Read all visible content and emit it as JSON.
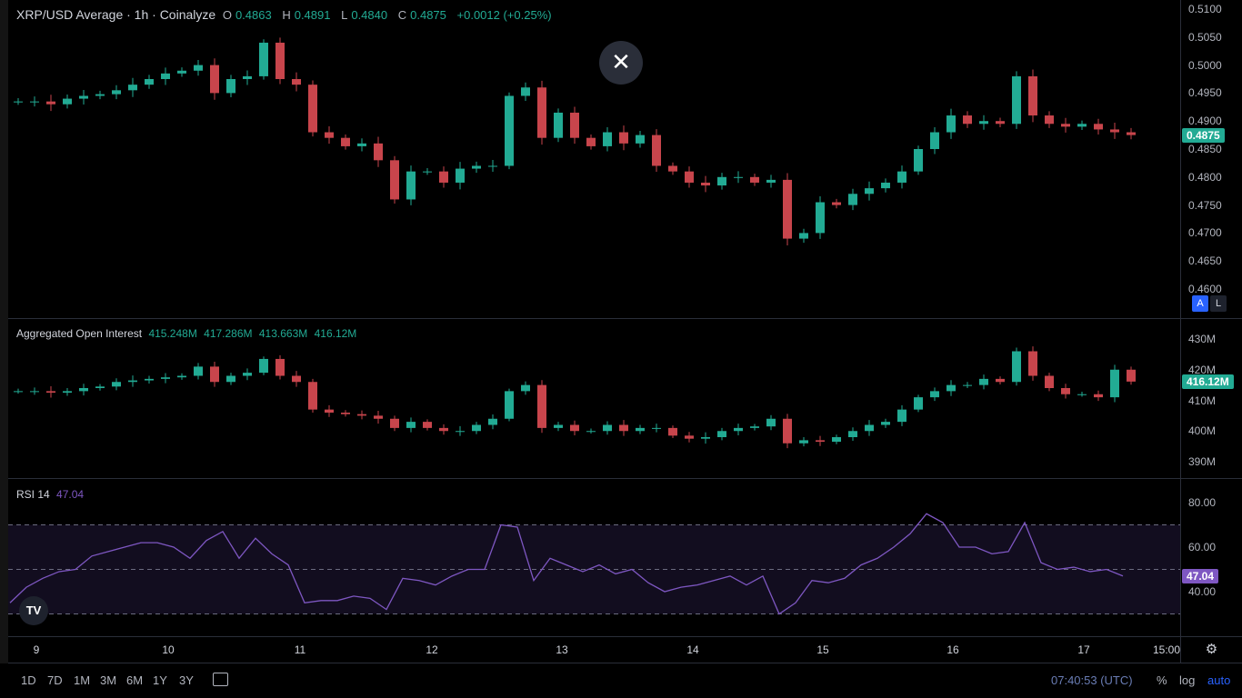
{
  "main": {
    "title": "XRP/USD Average · 1h · Coinalyze",
    "o_label": "O",
    "o": "0.4863",
    "h_label": "H",
    "h": "0.4891",
    "l_label": "L",
    "l": "0.4840",
    "c_label": "C",
    "c": "0.4875",
    "change": "+0.0012 (+0.25%)",
    "close_button": "✕",
    "auto_label": "A",
    "log_label": "L"
  },
  "oi": {
    "title": "Aggregated Open Interest",
    "v1": "415.248M",
    "v2": "417.286M",
    "v3": "413.663M",
    "v4": "416.12M"
  },
  "rsi": {
    "title": "RSI 14",
    "value": "47.04"
  },
  "colors": {
    "up": "#22ab94",
    "down": "#c8454c",
    "rsi": "#7e57c2",
    "background": "#000000"
  },
  "time_axis": [
    "9",
    "10",
    "11",
    "12",
    "13",
    "14",
    "15",
    "16",
    "17",
    "15:00"
  ],
  "toolbar": {
    "ranges": [
      "1D",
      "7D",
      "1M",
      "3M",
      "6M",
      "1Y",
      "3Y"
    ],
    "clock": "07:40:53 (UTC)",
    "percent": "%",
    "log": "log",
    "auto": "auto"
  },
  "chart_data": [
    {
      "type": "candlestick",
      "title": "XRP/USD Average · 1h · Coinalyze",
      "interval": "3h (approx.)",
      "ylim": [
        0.46,
        0.51
      ],
      "y_ticks": [
        "0.5100",
        "0.5050",
        "0.5000",
        "0.4950",
        "0.4900",
        "0.4850",
        "0.4800",
        "0.4750",
        "0.4700",
        "0.4650",
        "0.4600"
      ],
      "last_value": "0.4875",
      "closes": [
        0.4935,
        0.4935,
        0.493,
        0.494,
        0.4945,
        0.4948,
        0.4955,
        0.4965,
        0.4975,
        0.4985,
        0.499,
        0.5,
        0.495,
        0.4975,
        0.498,
        0.504,
        0.4975,
        0.4965,
        0.488,
        0.487,
        0.4855,
        0.486,
        0.483,
        0.476,
        0.481,
        0.481,
        0.479,
        0.4815,
        0.482,
        0.482,
        0.4945,
        0.496,
        0.487,
        0.4915,
        0.487,
        0.4855,
        0.488,
        0.486,
        0.4875,
        0.482,
        0.481,
        0.479,
        0.4785,
        0.48,
        0.48,
        0.479,
        0.4795,
        0.469,
        0.47,
        0.4755,
        0.475,
        0.477,
        0.478,
        0.479,
        0.481,
        0.485,
        0.488,
        0.491,
        0.4895,
        0.49,
        0.4895,
        0.498,
        0.491,
        0.4895,
        0.489,
        0.4895,
        0.4885,
        0.488,
        0.4875
      ]
    },
    {
      "type": "candlestick",
      "title": "Aggregated Open Interest",
      "unit": "M",
      "ylim": [
        390,
        430
      ],
      "y_ticks": [
        "430M",
        "420M",
        "410M",
        "400M",
        "390M"
      ],
      "last_value": "416.12M",
      "closes": [
        413,
        413,
        412.5,
        413,
        414,
        414.5,
        416,
        416.5,
        417,
        417.5,
        418,
        421,
        416,
        418,
        419,
        423.5,
        418,
        416,
        407,
        406,
        405.5,
        405,
        404,
        401,
        403,
        401,
        400,
        400,
        402,
        404,
        413,
        415,
        401,
        402,
        400,
        400,
        402,
        400,
        401,
        401,
        398.5,
        397.5,
        398,
        400,
        401,
        401.5,
        404,
        396,
        397,
        396.5,
        398,
        400,
        402,
        403,
        407,
        411,
        413,
        415,
        415,
        417,
        416,
        426,
        418,
        414,
        412,
        412,
        411,
        420,
        416.12
      ]
    },
    {
      "type": "line",
      "title": "RSI 14",
      "ylim": [
        25,
        85
      ],
      "y_ticks": [
        "80.00",
        "60.00",
        "40.00"
      ],
      "bands": [
        30,
        50,
        70
      ],
      "last_value": "47.04",
      "values": [
        35,
        42,
        46,
        49,
        50,
        56,
        58,
        60,
        62,
        62,
        60,
        55,
        63,
        67,
        55,
        64,
        57,
        52,
        35,
        36,
        36,
        38,
        37,
        32,
        46,
        45,
        43,
        47,
        50,
        50,
        70,
        69,
        45,
        55,
        52,
        49,
        52,
        48,
        50,
        44,
        40,
        42,
        43,
        45,
        47,
        43,
        47,
        30,
        35,
        45,
        44,
        46,
        52,
        55,
        60,
        66,
        75,
        71,
        60,
        60,
        57,
        58,
        71,
        53,
        50,
        51,
        49,
        50,
        47.04
      ]
    }
  ]
}
